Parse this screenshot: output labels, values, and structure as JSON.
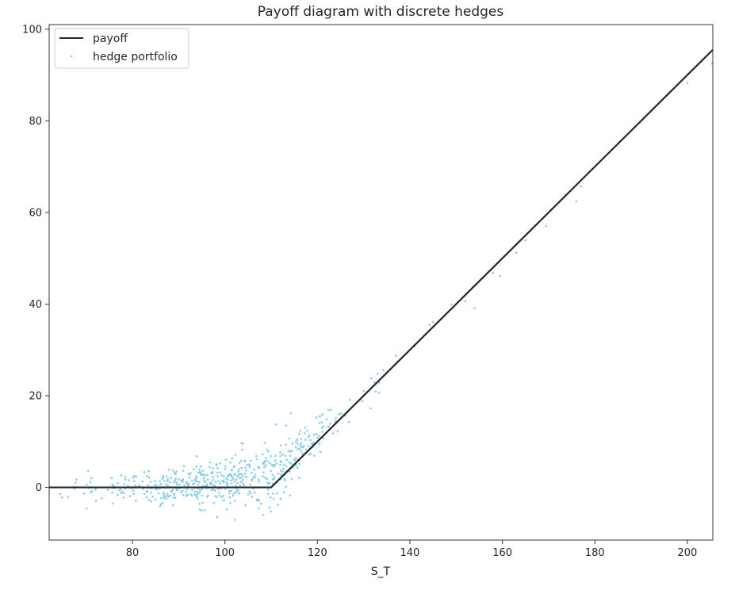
{
  "chart_data": {
    "type": "scatter",
    "title": "Payoff diagram with discrete hedges",
    "xlabel": "S_T",
    "ylabel": "",
    "xlim": [
      62,
      205.5
    ],
    "ylim": [
      -11.5,
      101
    ],
    "xticks": [
      80,
      100,
      120,
      140,
      160,
      180,
      200
    ],
    "yticks": [
      0,
      20,
      40,
      60,
      80,
      100
    ],
    "grid": false,
    "legend_position": "upper left",
    "colors": {
      "payoff": "#262626",
      "hedge": "#87ceeb",
      "axes": "#333333"
    },
    "series": [
      {
        "name": "payoff",
        "kind": "line",
        "strike": 110,
        "points": [
          [
            62,
            0
          ],
          [
            110,
            0
          ],
          [
            205.5,
            95.5
          ]
        ]
      },
      {
        "name": "hedge portfolio",
        "kind": "scatter",
        "generated_fan": {
          "count": 560,
          "x_range": [
            64,
            158
          ],
          "center_x": 100,
          "spread_x": 14,
          "noise_flat": 1.6,
          "noise_kink": 2.2
        },
        "points": [
          [
            64.8,
            -2.2
          ],
          [
            67.5,
            -0.3
          ],
          [
            70.1,
            0.6
          ],
          [
            72.0,
            -0.5
          ],
          [
            75.8,
            -3.5
          ],
          [
            77.5,
            -1.2
          ],
          [
            86.0,
            -4.1
          ],
          [
            88.8,
            -3.9
          ],
          [
            92.4,
            2.8
          ],
          [
            95.0,
            -5.0
          ],
          [
            98.3,
            -6.5
          ],
          [
            104.0,
            2.3
          ],
          [
            107.4,
            4.2
          ],
          [
            112.0,
            6.9
          ],
          [
            114.5,
            8.0
          ],
          [
            116.3,
            9.2
          ],
          [
            118.6,
            7.4
          ],
          [
            121.0,
            13.0
          ],
          [
            124.0,
            15.1
          ],
          [
            127.0,
            19.1
          ],
          [
            130.0,
            21.0
          ],
          [
            133.0,
            24.8
          ],
          [
            137.0,
            28.7
          ],
          [
            141.0,
            30.8
          ],
          [
            145.0,
            36.1
          ],
          [
            149.0,
            39.9
          ],
          [
            152.0,
            40.6
          ],
          [
            154.0,
            39.1
          ],
          [
            158.0,
            46.8
          ],
          [
            159.5,
            46.1
          ],
          [
            163.0,
            51.2
          ],
          [
            165.0,
            53.9
          ],
          [
            169.5,
            57.0
          ],
          [
            176.0,
            62.4
          ],
          [
            177.0,
            65.7
          ],
          [
            200.0,
            88.3
          ],
          [
            205.3,
            92.5
          ]
        ]
      }
    ]
  }
}
